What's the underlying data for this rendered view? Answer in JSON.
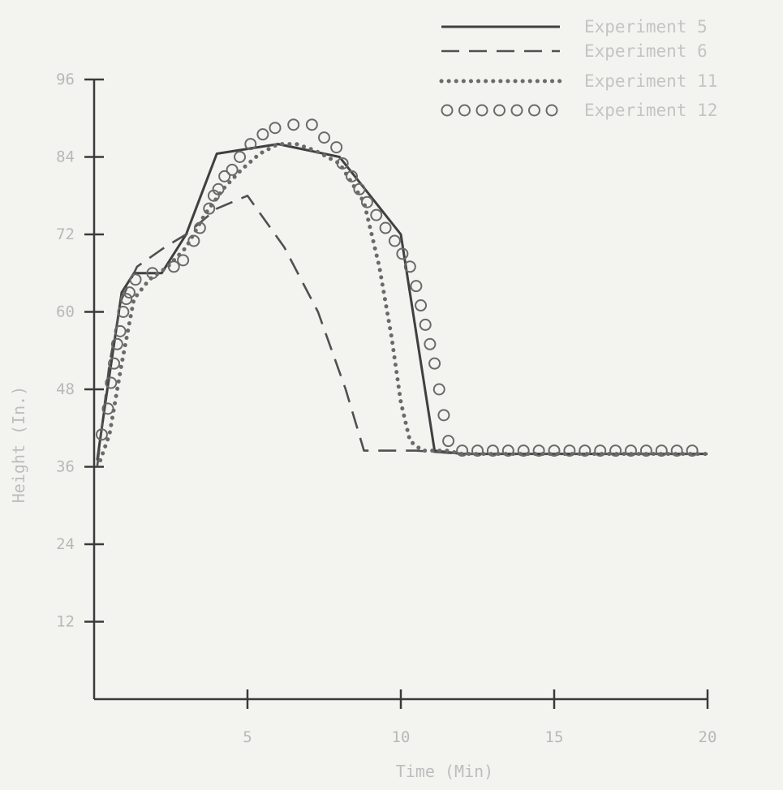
{
  "chart_data": {
    "type": "line",
    "title": "",
    "xlabel": "Time (Min)",
    "ylabel": "Height (In.)",
    "xlim": [
      0,
      20
    ],
    "ylim": [
      0,
      96
    ],
    "x_ticks": [
      "5",
      "10",
      "15",
      "20"
    ],
    "y_ticks": [
      "12",
      "24",
      "36",
      "48",
      "60",
      "72",
      "84",
      "96"
    ],
    "grid": false,
    "legend_position": "top-right",
    "series": [
      {
        "name": "Experiment 5",
        "style": "solid",
        "color": "#404040",
        "points": [
          [
            0.1,
            37
          ],
          [
            0.4,
            47
          ],
          [
            0.9,
            63
          ],
          [
            1.3,
            66
          ],
          [
            2.2,
            66
          ],
          [
            3.0,
            72
          ],
          [
            4.0,
            84.5
          ],
          [
            6.0,
            86
          ],
          [
            8.0,
            84
          ],
          [
            10.0,
            72
          ],
          [
            11.1,
            38.5
          ],
          [
            12,
            38
          ],
          [
            20,
            38
          ]
        ]
      },
      {
        "name": "Experiment 6",
        "style": "dashed",
        "color": "#505050",
        "points": [
          [
            0.1,
            36
          ],
          [
            0.5,
            52
          ],
          [
            0.9,
            62
          ],
          [
            1.4,
            67
          ],
          [
            2.3,
            70
          ],
          [
            3.0,
            72
          ],
          [
            4.0,
            76
          ],
          [
            5.0,
            78
          ],
          [
            6.2,
            70
          ],
          [
            7.3,
            60
          ],
          [
            8.2,
            48
          ],
          [
            8.8,
            38.5
          ],
          [
            10.5,
            38.5
          ],
          [
            12,
            38
          ],
          [
            20,
            38
          ]
        ]
      },
      {
        "name": "Experiment 11",
        "style": "dotted",
        "color": "#6a6a6a",
        "points": [
          [
            0.2,
            37
          ],
          [
            0.5,
            41
          ],
          [
            0.9,
            52
          ],
          [
            1.3,
            62
          ],
          [
            1.8,
            65
          ],
          [
            2.4,
            67
          ],
          [
            3.0,
            70
          ],
          [
            3.6,
            75
          ],
          [
            4.2,
            79
          ],
          [
            4.8,
            82
          ],
          [
            5.4,
            84.5
          ],
          [
            6.0,
            86
          ],
          [
            6.6,
            86
          ],
          [
            7.2,
            85
          ],
          [
            8.0,
            83
          ],
          [
            8.8,
            77
          ],
          [
            9.3,
            67
          ],
          [
            9.7,
            56
          ],
          [
            10.0,
            46
          ],
          [
            10.3,
            40
          ],
          [
            10.7,
            38.5
          ],
          [
            11.5,
            38.5
          ],
          [
            12,
            38
          ],
          [
            20,
            38
          ]
        ]
      },
      {
        "name": "Experiment 12",
        "style": "circles",
        "color": "#6a6a6a",
        "points": [
          [
            0.25,
            41
          ],
          [
            0.45,
            45
          ],
          [
            0.55,
            49
          ],
          [
            0.65,
            52
          ],
          [
            0.75,
            55
          ],
          [
            0.85,
            57
          ],
          [
            0.95,
            60
          ],
          [
            1.05,
            62
          ],
          [
            1.15,
            63
          ],
          [
            1.35,
            65
          ],
          [
            1.9,
            66
          ],
          [
            2.6,
            67
          ],
          [
            2.9,
            68
          ],
          [
            3.25,
            71
          ],
          [
            3.45,
            73
          ],
          [
            3.75,
            76
          ],
          [
            3.9,
            78
          ],
          [
            4.05,
            79
          ],
          [
            4.25,
            81
          ],
          [
            4.5,
            82
          ],
          [
            4.75,
            84
          ],
          [
            5.1,
            86
          ],
          [
            5.5,
            87.5
          ],
          [
            5.9,
            88.5
          ],
          [
            6.5,
            89
          ],
          [
            7.1,
            89
          ],
          [
            7.5,
            87
          ],
          [
            7.9,
            85.5
          ],
          [
            8.1,
            83
          ],
          [
            8.4,
            81
          ],
          [
            8.65,
            79
          ],
          [
            8.9,
            77
          ],
          [
            9.2,
            75
          ],
          [
            9.5,
            73
          ],
          [
            9.8,
            71
          ],
          [
            10.05,
            69
          ],
          [
            10.3,
            67
          ],
          [
            10.5,
            64
          ],
          [
            10.65,
            61
          ],
          [
            10.8,
            58
          ],
          [
            10.95,
            55
          ],
          [
            11.1,
            52
          ],
          [
            11.25,
            48
          ],
          [
            11.4,
            44
          ],
          [
            11.55,
            40
          ],
          [
            12.0,
            38.5
          ],
          [
            12.5,
            38.5
          ],
          [
            13.0,
            38.5
          ],
          [
            13.5,
            38.5
          ],
          [
            14.0,
            38.5
          ],
          [
            14.5,
            38.5
          ],
          [
            15.0,
            38.5
          ],
          [
            15.5,
            38.5
          ],
          [
            16.0,
            38.5
          ],
          [
            16.5,
            38.5
          ],
          [
            17.0,
            38.5
          ],
          [
            17.5,
            38.5
          ],
          [
            18.0,
            38.5
          ],
          [
            18.5,
            38.5
          ],
          [
            19.0,
            38.5
          ],
          [
            19.5,
            38.5
          ]
        ]
      }
    ]
  }
}
